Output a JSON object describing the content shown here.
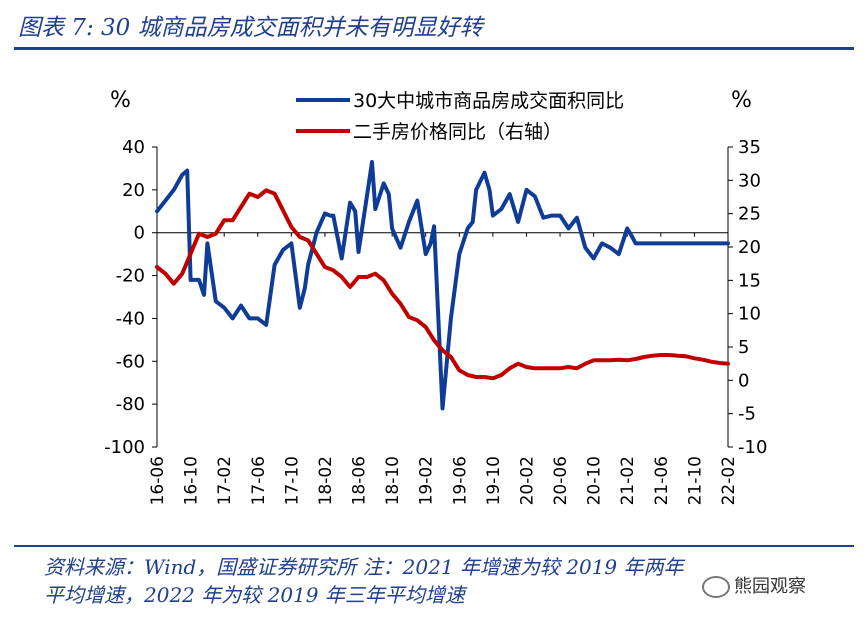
{
  "header": {
    "title": "图表 7: 30 城商品房成交面积并未有明显好转"
  },
  "footer": {
    "line1": "资料来源：Wind，国盛证券研究所 注：2021 年增速为较 2019 年两年",
    "line2": "平均增速，2022 年为较 2019 年三年平均增速"
  },
  "watermark": {
    "text": "熊园观察"
  },
  "colors": {
    "brand": "#1f3f8f",
    "series_area": "#0e3c96",
    "series_price": "#c00000"
  },
  "chart_data": {
    "type": "line",
    "title": "",
    "left_unit": "%",
    "right_unit": "%",
    "ylim_left": [
      -100,
      40
    ],
    "yticks_left": [
      40,
      20,
      0,
      -20,
      -40,
      -60,
      -80,
      -100
    ],
    "yticks_left_labels": [
      "40",
      "20",
      "0",
      "-20",
      "-40",
      "-60",
      "-80",
      "-100"
    ],
    "ylim_right": [
      -10,
      35
    ],
    "yticks_right": [
      35,
      30,
      25,
      20,
      15,
      10,
      5,
      0,
      -5,
      -10
    ],
    "yticks_right_labels": [
      "35",
      "30",
      "25",
      "20",
      "15",
      "10",
      "5",
      "0",
      "-5",
      "-10"
    ],
    "x_range": [
      0,
      68
    ],
    "x_tick_labels": [
      "16-06",
      "16-10",
      "17-02",
      "17-06",
      "17-10",
      "18-02",
      "18-06",
      "18-10",
      "19-02",
      "19-06",
      "19-10",
      "20-02",
      "20-06",
      "20-10",
      "21-02",
      "21-06",
      "21-10",
      "22-02"
    ],
    "legend": [
      "30大中城市商品房成交面积同比",
      "二手房价格同比（右轴）"
    ],
    "series": [
      {
        "name": "30大中城市商品房成交面积同比",
        "axis": "left",
        "x": [
          0,
          1,
          2,
          3,
          3.6,
          4,
          5,
          5.6,
          6,
          7,
          8,
          9,
          10,
          11,
          12,
          13,
          14,
          15,
          16,
          17,
          17.6,
          18,
          19,
          20,
          20.6,
          21,
          22,
          23,
          23.6,
          24,
          25,
          25.6,
          26,
          27,
          27.6,
          28,
          29,
          30,
          31,
          32,
          32.6,
          33,
          34,
          35,
          36,
          37,
          37.6,
          38,
          39,
          39.6,
          40,
          41,
          42,
          43,
          44,
          45,
          46,
          47,
          48,
          49,
          50,
          51,
          52,
          53,
          54,
          55,
          56,
          56.6,
          57,
          58,
          58.6,
          59,
          60,
          61,
          62,
          63,
          64,
          65,
          66,
          67,
          68
        ],
        "values": [
          10,
          15,
          20,
          27,
          29,
          -22,
          -22,
          -29,
          -5,
          -32,
          -35,
          -40,
          -34,
          -40,
          -40,
          -43,
          -15,
          -8,
          -5,
          -35,
          -26,
          -15,
          0,
          9,
          8,
          8,
          -12,
          14,
          10,
          -9,
          17,
          33,
          11,
          23,
          18,
          2,
          -7,
          5,
          15,
          -10,
          -5,
          3,
          -82,
          -40,
          -10,
          2,
          5,
          20,
          28,
          20,
          8,
          11,
          18,
          5,
          20,
          17,
          7,
          8,
          8,
          2,
          7,
          -7,
          -12,
          -5,
          -7,
          -10,
          2,
          -2,
          -5,
          -5,
          -5,
          -5,
          -5,
          -5,
          -5,
          -5,
          -5,
          -5,
          -5,
          -5,
          -5
        ]
      },
      {
        "name": "二手房价格同比（右轴）",
        "axis": "right",
        "x": [
          0,
          1,
          2,
          3,
          4,
          5,
          6,
          7,
          8,
          9,
          10,
          11,
          12,
          13,
          14,
          15,
          16,
          17,
          18,
          19,
          20,
          21,
          22,
          23,
          24,
          25,
          26,
          27,
          28,
          29,
          30,
          31,
          32,
          33,
          34,
          35,
          36,
          37,
          38,
          39,
          40,
          41,
          42,
          43,
          44,
          45,
          46,
          47,
          48,
          49,
          50,
          51,
          52,
          53,
          54,
          55,
          56,
          57,
          58,
          59,
          60,
          61,
          62,
          63,
          64,
          65,
          66,
          67,
          68
        ],
        "values": [
          17,
          16,
          14.5,
          16,
          19,
          22,
          21.5,
          22,
          24,
          24,
          26,
          28,
          27.5,
          28.5,
          28,
          25.5,
          23,
          21.5,
          21,
          19,
          17,
          16.5,
          15.5,
          14,
          15.5,
          15.5,
          16,
          15,
          13,
          11.5,
          9.5,
          9,
          8,
          6,
          4.5,
          3.5,
          1.5,
          0.8,
          0.5,
          0.5,
          0.3,
          0.8,
          1.8,
          2.5,
          2,
          1.8,
          1.8,
          1.8,
          1.8,
          2,
          1.8,
          2.5,
          3,
          3,
          3,
          3.1,
          3,
          3.2,
          3.5,
          3.7,
          3.8,
          3.8,
          3.7,
          3.6,
          3.3,
          3.1,
          2.8,
          2.6,
          2.5
        ]
      }
    ]
  }
}
